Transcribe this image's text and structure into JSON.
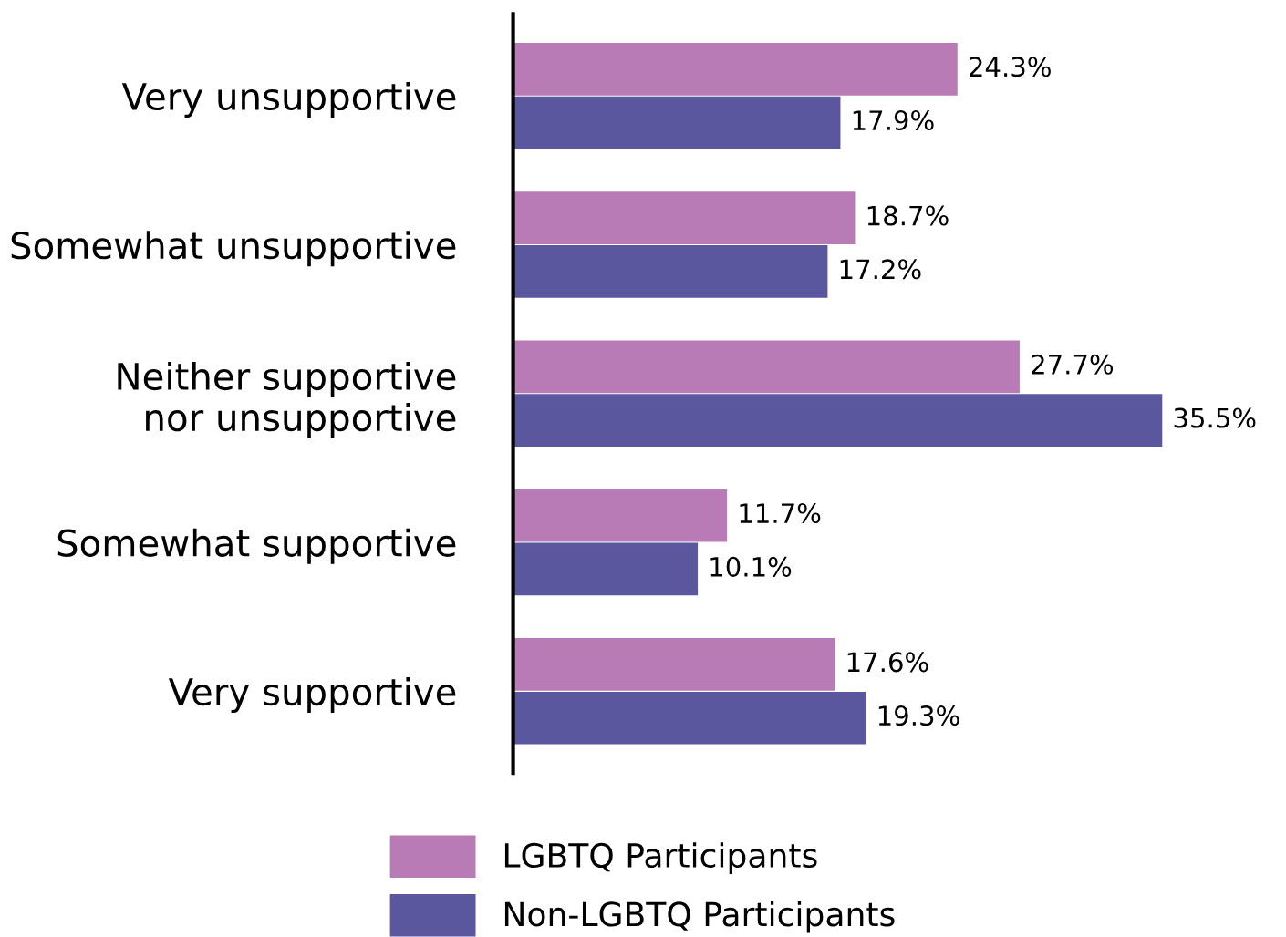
{
  "chart_data": {
    "type": "bar",
    "orientation": "horizontal",
    "categories": [
      "Very unsupportive",
      "Somewhat unsupportive",
      "Neither supportive\nnor unsupportive",
      "Somewhat supportive",
      "Very supportive"
    ],
    "series": [
      {
        "name": "LGBTQ Participants",
        "color": "#b97bb5",
        "values": [
          24.3,
          18.7,
          27.7,
          11.7,
          17.6
        ],
        "value_labels": [
          "24.3%",
          "18.7%",
          "27.7%",
          "11.7%",
          "17.6%"
        ]
      },
      {
        "name": "Non-LGBTQ Participants",
        "color": "#5b579f",
        "values": [
          17.9,
          17.2,
          35.5,
          10.1,
          19.3
        ],
        "value_labels": [
          "17.9%",
          "17.2%",
          "35.5%",
          "10.1%",
          "19.3%"
        ]
      }
    ],
    "legend": "bottom",
    "grid": false
  }
}
